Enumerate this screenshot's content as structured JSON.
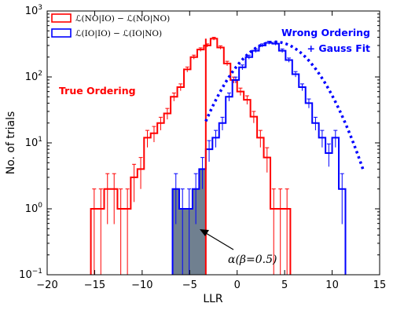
{
  "chart_data": {
    "type": "histogram",
    "xlabel": "LLR",
    "ylabel": "No. of trials",
    "xlim": [
      -20,
      15
    ],
    "ylim": [
      0.1,
      1000
    ],
    "yscale": "log",
    "grid": false,
    "legend_placement": "top-left",
    "x_ticks": [
      -20,
      -15,
      -10,
      -5,
      0,
      5,
      10,
      15
    ],
    "y_ticks": [
      {
        "value": 0.1,
        "base": "10",
        "exp": "−1"
      },
      {
        "value": 1,
        "base": "10",
        "exp": "0"
      },
      {
        "value": 10,
        "base": "10",
        "exp": "1"
      },
      {
        "value": 100,
        "base": "10",
        "exp": "2"
      },
      {
        "value": 1000,
        "base": "10",
        "exp": "3"
      }
    ],
    "series": [
      {
        "name": "ℒ(NO|IO) − ℒ(NO|NO)",
        "color": "#ff0000",
        "bin_edges": [
          -15.4,
          -14.7,
          -14.0,
          -13.3,
          -12.6,
          -11.9,
          -11.2,
          -10.5,
          -9.8,
          -9.1,
          -8.4,
          -7.7,
          -7.0,
          -6.3,
          -5.6,
          -4.9,
          -4.2,
          -3.5,
          -2.8,
          -2.1,
          -1.4,
          -0.7,
          0.0,
          0.7,
          1.4,
          2.1,
          2.8,
          3.5,
          4.2,
          4.9,
          5.6
        ],
        "counts": [
          1,
          1,
          2,
          2,
          1,
          1,
          3,
          4,
          12,
          14,
          20,
          28,
          50,
          70,
          130,
          200,
          260,
          300,
          380,
          280,
          160,
          90,
          60,
          45,
          25,
          12,
          6,
          1,
          1,
          1
        ],
        "error_bars": true
      },
      {
        "name": "ℒ(IO|IO) − ℒ(IO|NO)",
        "color": "#0000ff",
        "bin_edges": [
          -6.8,
          -6.1,
          -5.4,
          -4.7,
          -4.0,
          -3.3,
          -2.6,
          -1.9,
          -1.2,
          -0.5,
          0.2,
          0.9,
          1.6,
          2.3,
          3.0,
          3.7,
          4.4,
          5.1,
          5.8,
          6.5,
          7.2,
          7.9,
          8.6,
          9.3,
          10.0,
          10.7,
          11.4
        ],
        "counts": [
          2,
          1,
          1,
          2,
          4,
          8,
          12,
          20,
          50,
          90,
          140,
          200,
          250,
          300,
          330,
          320,
          250,
          180,
          110,
          70,
          40,
          20,
          12,
          7,
          12,
          2
        ],
        "error_bars": true
      },
      {
        "name": "Gauss Fit",
        "color": "#0000ff",
        "style": "dotted",
        "mean": 4.0,
        "sigma": 3.1,
        "peak": 340,
        "x_range": [
          -3.3,
          13.3
        ]
      }
    ],
    "shaded_region": {
      "x_from": -6.8,
      "x_to": -3.3,
      "color": "#708090",
      "label": "α(β=0.5)"
    },
    "vertical_line": {
      "x": -3.3,
      "color": "#ff0000"
    },
    "annotations": {
      "true_ordering": "True Ordering",
      "wrong_ordering_1": "Wrong Ordering",
      "wrong_ordering_2": "+ Gauss Fit"
    }
  }
}
